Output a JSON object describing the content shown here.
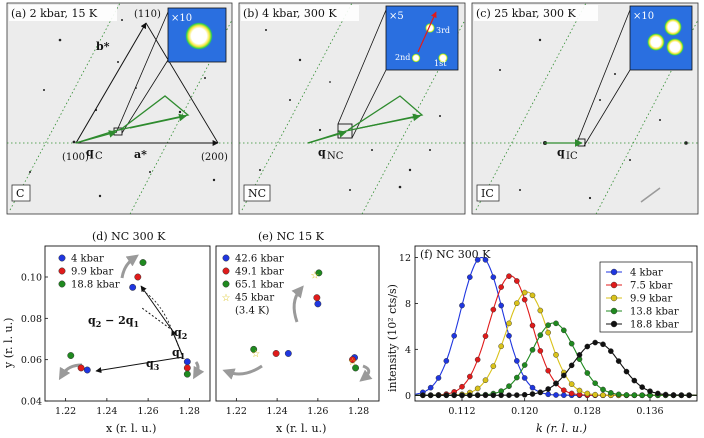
{
  "panels_top": [
    {
      "id": "a",
      "title": "(a) 2 kbar, 15 K",
      "corner_label": "C",
      "inset_zoom": "×10",
      "labels": {
        "b_star": "b*",
        "a_star": "a*",
        "q": "q",
        "q_sub": "C",
        "h100": "(100)",
        "h200": "(200)",
        "h110": "(110)"
      }
    },
    {
      "id": "b",
      "title": "(b) 4 kbar, 300 K",
      "corner_label": "NC",
      "inset_zoom": "×5",
      "labels": {
        "q": "q",
        "q_sub": "NC",
        "o1": "1st",
        "o2": "2nd",
        "o3": "3rd"
      }
    },
    {
      "id": "c",
      "title": "(c) 25 kbar, 300 K",
      "corner_label": "IC",
      "inset_zoom": "×10",
      "labels": {
        "q": "q",
        "q_sub": "IC"
      }
    }
  ],
  "colors": {
    "blue": "#1f36e0",
    "red": "#e01b1b",
    "yellow": "#d9c21a",
    "green": "#1f8a1f",
    "black": "#111111",
    "arrow_green": "#2e8b2e",
    "inset_bg": "#2a6fe0",
    "gray_arrow": "#9a9a9a"
  },
  "chart_data": [
    {
      "id": "d",
      "type": "scatter",
      "title": "(d) NC 300 K",
      "xlabel": "x (r. l. u.)",
      "ylabel": "y (r. l. u.)",
      "xlim": [
        1.21,
        1.29
      ],
      "ylim": [
        0.04,
        0.115
      ],
      "xticks": [
        "1.22",
        "1.24",
        "1.26",
        "1.28"
      ],
      "yticks": [
        "0.04",
        "0.06",
        "0.08",
        "0.10"
      ],
      "annotations": {
        "q1": "q",
        "q1_sub": "1",
        "q2": "q",
        "q2_sub": "2",
        "q3": "q",
        "q3_sub": "3",
        "q2m2q1": "q",
        "q2m2q1_mid": "2",
        "q2m2q1_tail": " − 2q",
        "q2m2q1_sub": "1"
      },
      "series": [
        {
          "name": "4 kbar",
          "color": "blue",
          "points": [
            [
              1.279,
              0.059
            ],
            [
              1.2525,
              0.095
            ],
            [
              1.2305,
              0.055
            ]
          ]
        },
        {
          "name": "9.9 kbar",
          "color": "red",
          "points": [
            [
              1.279,
              0.056
            ],
            [
              1.255,
              0.1
            ],
            [
              1.2275,
              0.056
            ]
          ]
        },
        {
          "name": "18.8 kbar",
          "color": "green",
          "points": [
            [
              1.279,
              0.053
            ],
            [
              1.2575,
              0.107
            ],
            [
              1.2225,
              0.062
            ]
          ]
        }
      ]
    },
    {
      "id": "e",
      "type": "scatter",
      "title": "(e) NC 15 K",
      "xlabel": "x (r. l. u.)",
      "xlim": [
        1.21,
        1.29
      ],
      "ylim": [
        0.04,
        0.115
      ],
      "xticks": [
        "1.22",
        "1.24",
        "1.26",
        "1.28"
      ],
      "series": [
        {
          "name": "42.6 kbar",
          "color": "blue",
          "points": [
            [
              1.26,
              0.087
            ],
            [
              1.2455,
              0.063
            ],
            [
              1.278,
              0.061
            ]
          ]
        },
        {
          "name": "49.1 kbar",
          "color": "red",
          "points": [
            [
              1.2595,
              0.09
            ],
            [
              1.2395,
              0.063
            ],
            [
              1.277,
              0.06
            ]
          ]
        },
        {
          "name": "65.1 kbar",
          "color": "green",
          "points": [
            [
              1.2605,
              0.102
            ],
            [
              1.2285,
              0.065
            ],
            [
              1.2785,
              0.056
            ]
          ]
        },
        {
          "name": "45 kbar",
          "name_line2": "(3.4 K)",
          "color": "yellow",
          "marker": "star",
          "points": [
            [
              1.2585,
              0.101
            ],
            [
              1.2295,
              0.063
            ],
            [
              1.277,
              0.059
            ]
          ]
        }
      ]
    },
    {
      "id": "f",
      "type": "line",
      "title": "(f) NC 300 K",
      "xlabel": "k (r. l. u.)",
      "ylabel": "intensity (10² cts/s)",
      "xlim": [
        0.106,
        0.142
      ],
      "ylim": [
        -0.5,
        13
      ],
      "xticks": [
        "0.112",
        "0.120",
        "0.128",
        "0.136"
      ],
      "yticks": [
        "0",
        "4",
        "8",
        "12"
      ],
      "series": [
        {
          "name": "4 kbar",
          "color": "blue",
          "center": 0.1145,
          "amp": 12.0,
          "sigma": 0.0027
        },
        {
          "name": "7.5 kbar",
          "color": "red",
          "center": 0.1182,
          "amp": 10.4,
          "sigma": 0.0027
        },
        {
          "name": "9.9 kbar",
          "color": "yellow",
          "center": 0.1203,
          "amp": 9.0,
          "sigma": 0.0027
        },
        {
          "name": "13.8 kbar",
          "color": "green",
          "center": 0.1237,
          "amp": 6.3,
          "sigma": 0.0028
        },
        {
          "name": "18.8 kbar",
          "color": "black",
          "center": 0.1292,
          "amp": 4.6,
          "sigma": 0.003
        }
      ]
    }
  ]
}
